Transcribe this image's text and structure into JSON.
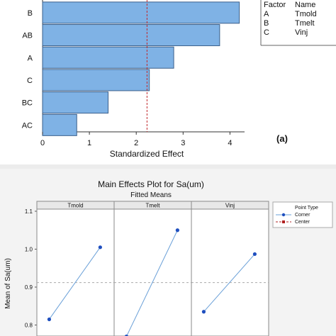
{
  "chart_data": [
    {
      "type": "bar",
      "orientation": "horizontal",
      "categories": [
        "B",
        "AB",
        "A",
        "C",
        "BC",
        "AC"
      ],
      "values": [
        4.2,
        3.78,
        2.8,
        2.28,
        1.4,
        0.73
      ],
      "xlabel": "Standardized Effect",
      "xlim": [
        0,
        4.4
      ],
      "xticks": [
        "0",
        "1",
        "2",
        "3",
        "4"
      ],
      "reference_line": 2.23,
      "bar_color": "#7fb2e5",
      "reference_color": "#c0282c",
      "panel_label": "(a)",
      "factor_table": {
        "headers": [
          "Factor",
          "Name"
        ],
        "rows": [
          [
            "A",
            "Tmold"
          ],
          [
            "B",
            "Tmelt"
          ],
          [
            "C",
            "Vinj"
          ]
        ]
      }
    },
    {
      "type": "line",
      "title": "Main Effects Plot for Sa(um)",
      "subtitle": "Fitted Means",
      "ylabel": "Mean of Sa(um)",
      "ylim": [
        0.78,
        1.1
      ],
      "yticks": [
        "1.1",
        "1.0",
        "0.9",
        "0.8"
      ],
      "mean_line": 0.912,
      "panels": [
        {
          "name": "Tmold",
          "low": 0.815,
          "high": 1.005
        },
        {
          "name": "Tmelt",
          "low": 0.77,
          "high": 1.05
        },
        {
          "name": "Vinj",
          "low": 0.835,
          "high": 0.987
        }
      ],
      "legend": {
        "title": "Point Type",
        "entries": [
          {
            "label": "Corner",
            "color": "#1f4fbf"
          },
          {
            "label": "Center",
            "color": "#b02020"
          }
        ]
      },
      "line_color": "#6aa0d8"
    }
  ]
}
